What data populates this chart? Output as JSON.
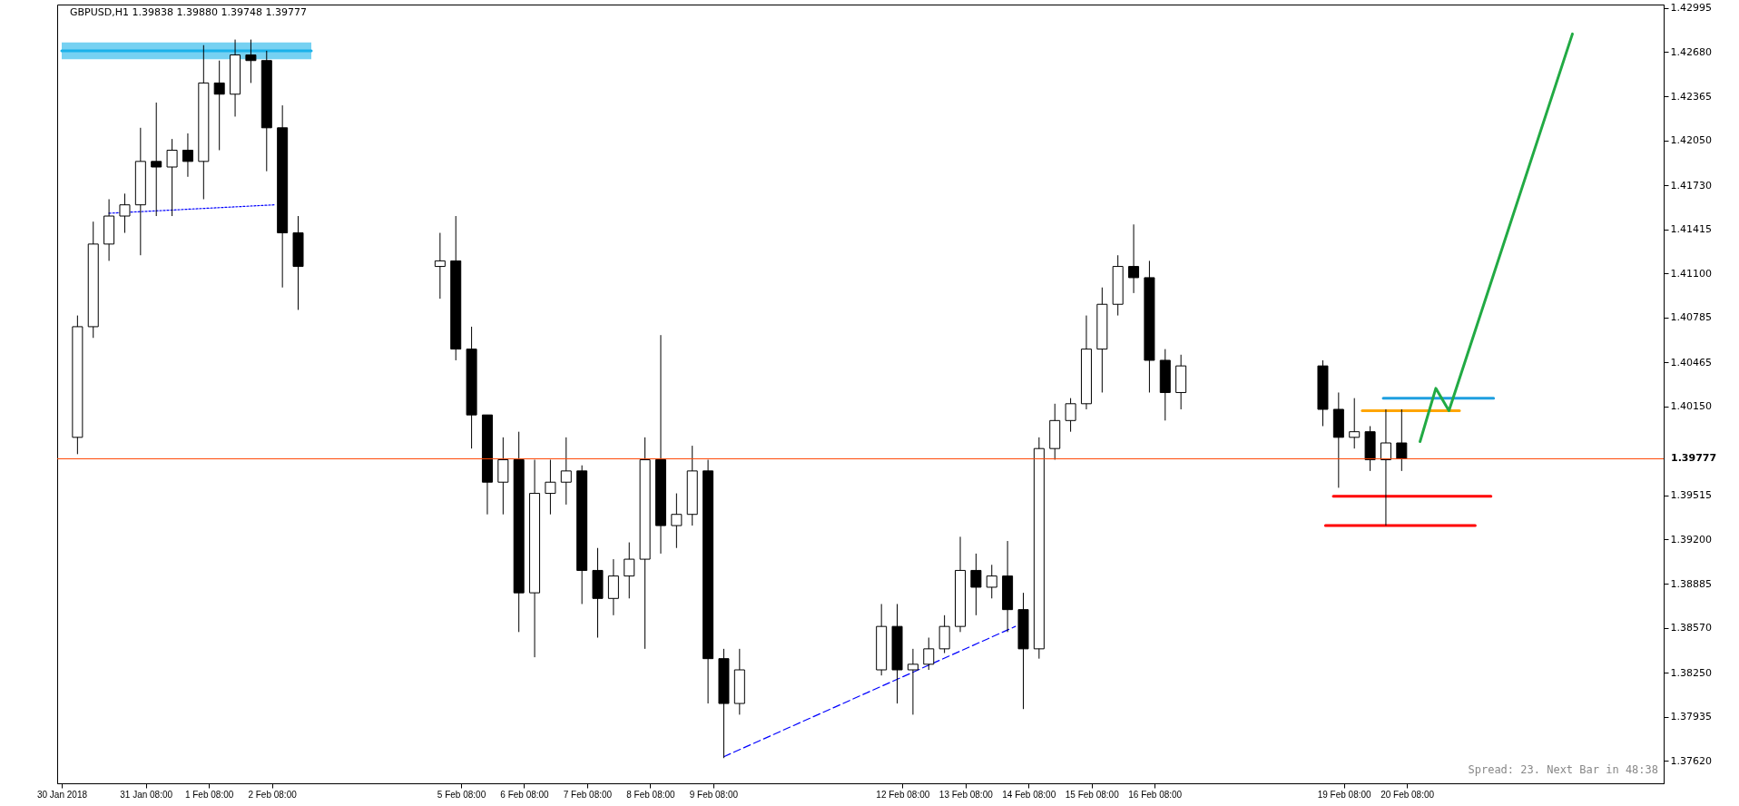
{
  "chart_data": {
    "type": "candlestick",
    "title": "GBPUSD,H1 1.39838 1.39880 1.39748 1.39777",
    "x": [
      "2018-01-30T06:00",
      "2018-01-30T12:00",
      "2018-01-30T18:00",
      "2018-01-31T00:00",
      "2018-01-31T06:00",
      "2018-01-31T12:00",
      "2018-01-31T18:00",
      "2018-02-01T00:00",
      "2018-02-01T06:00",
      "2018-02-01T12:00",
      "2018-02-01T18:00",
      "2018-02-02T00:00",
      "2018-02-02T06:00",
      "2018-02-02T12:00",
      "2018-02-02T18:00",
      "2018-02-05T00:00",
      "2018-02-05T06:00",
      "2018-02-05T12:00",
      "2018-02-05T18:00",
      "2018-02-06T00:00",
      "2018-02-06T06:00",
      "2018-02-06T12:00",
      "2018-02-06T18:00",
      "2018-02-07T00:00",
      "2018-02-07T06:00",
      "2018-02-07T12:00",
      "2018-02-07T18:00",
      "2018-02-08T00:00",
      "2018-02-08T06:00",
      "2018-02-08T12:00",
      "2018-02-08T18:00",
      "2018-02-09T00:00",
      "2018-02-09T06:00",
      "2018-02-09T12:00",
      "2018-02-09T18:00",
      "2018-02-12T00:00",
      "2018-02-12T06:00",
      "2018-02-12T12:00",
      "2018-02-12T18:00",
      "2018-02-13T00:00",
      "2018-02-13T06:00",
      "2018-02-13T12:00",
      "2018-02-13T18:00",
      "2018-02-14T00:00",
      "2018-02-14T06:00",
      "2018-02-14T12:00",
      "2018-02-14T18:00",
      "2018-02-15T00:00",
      "2018-02-15T06:00",
      "2018-02-15T12:00",
      "2018-02-15T18:00",
      "2018-02-16T00:00",
      "2018-02-16T06:00",
      "2018-02-16T12:00",
      "2018-02-16T18:00",
      "2018-02-19T00:00",
      "2018-02-19T06:00",
      "2018-02-19T12:00",
      "2018-02-19T18:00",
      "2018-02-20T00:00",
      "2018-02-20T06:00"
    ],
    "ohlc": [
      [
        1.3993,
        1.408,
        1.3981,
        1.4072
      ],
      [
        1.4072,
        1.4147,
        1.4064,
        1.4131
      ],
      [
        1.4131,
        1.4163,
        1.4119,
        1.4151
      ],
      [
        1.4151,
        1.4167,
        1.4139,
        1.4159
      ],
      [
        1.4159,
        1.4214,
        1.4123,
        1.419
      ],
      [
        1.419,
        1.4232,
        1.4151,
        1.4186
      ],
      [
        1.4186,
        1.4206,
        1.4151,
        1.4198
      ],
      [
        1.4198,
        1.421,
        1.4179,
        1.419
      ],
      [
        1.419,
        1.4273,
        1.4163,
        1.4246
      ],
      [
        1.4246,
        1.4262,
        1.4198,
        1.4238
      ],
      [
        1.4238,
        1.4277,
        1.4222,
        1.4266
      ],
      [
        1.4266,
        1.4277,
        1.4246,
        1.4262
      ],
      [
        1.4262,
        1.4269,
        1.4183,
        1.4214
      ],
      [
        1.4214,
        1.423,
        1.41,
        1.4139
      ],
      [
        1.4139,
        1.4151,
        1.4084,
        1.4115
      ],
      [
        1.4115,
        1.4139,
        1.4092,
        1.4119
      ],
      [
        1.4119,
        1.4151,
        1.4048,
        1.4056
      ],
      [
        1.4056,
        1.4072,
        1.3985,
        1.4009
      ],
      [
        1.4009,
        1.4009,
        1.3938,
        1.3961
      ],
      [
        1.3961,
        1.3993,
        1.3938,
        1.3977
      ],
      [
        1.3977,
        1.3997,
        1.3854,
        1.3882
      ],
      [
        1.3882,
        1.3977,
        1.3836,
        1.3953
      ],
      [
        1.3953,
        1.3977,
        1.3938,
        1.3961
      ],
      [
        1.3961,
        1.3993,
        1.3945,
        1.3969
      ],
      [
        1.3969,
        1.3973,
        1.3874,
        1.3898
      ],
      [
        1.3898,
        1.3914,
        1.385,
        1.3878
      ],
      [
        1.3878,
        1.3906,
        1.3866,
        1.3894
      ],
      [
        1.3894,
        1.3918,
        1.3878,
        1.3906
      ],
      [
        1.3906,
        1.3993,
        1.3842,
        1.3977
      ],
      [
        1.3977,
        1.4066,
        1.391,
        1.393
      ],
      [
        1.393,
        1.3953,
        1.3914,
        1.3938
      ],
      [
        1.3938,
        1.3987,
        1.393,
        1.3969
      ],
      [
        1.3969,
        1.3977,
        1.3803,
        1.3835
      ],
      [
        1.3835,
        1.3842,
        1.3764,
        1.3803
      ],
      [
        1.3803,
        1.3842,
        1.3795,
        1.3827
      ],
      [
        1.3827,
        1.3874,
        1.3823,
        1.3858
      ],
      [
        1.3858,
        1.3874,
        1.3803,
        1.3827
      ],
      [
        1.3827,
        1.3842,
        1.3795,
        1.3831
      ],
      [
        1.3831,
        1.385,
        1.3827,
        1.3842
      ],
      [
        1.3842,
        1.3866,
        1.3839,
        1.3858
      ],
      [
        1.3858,
        1.3922,
        1.3854,
        1.3898
      ],
      [
        1.3898,
        1.391,
        1.3866,
        1.3886
      ],
      [
        1.3886,
        1.3902,
        1.3878,
        1.3894
      ],
      [
        1.3894,
        1.3919,
        1.3854,
        1.387
      ],
      [
        1.387,
        1.3882,
        1.3799,
        1.3842
      ],
      [
        1.3842,
        1.3993,
        1.3835,
        1.3985
      ],
      [
        1.3985,
        1.4017,
        1.3977,
        1.4005
      ],
      [
        1.4005,
        1.4021,
        1.3997,
        1.4017
      ],
      [
        1.4017,
        1.408,
        1.4013,
        1.4056
      ],
      [
        1.4056,
        1.41,
        1.4025,
        1.4088
      ],
      [
        1.4088,
        1.4123,
        1.408,
        1.4115
      ],
      [
        1.4115,
        1.4145,
        1.4096,
        1.4107
      ],
      [
        1.4107,
        1.4119,
        1.4025,
        1.4048
      ],
      [
        1.4048,
        1.4056,
        1.4005,
        1.4025
      ],
      [
        1.4025,
        1.4052,
        1.4013,
        1.4044
      ],
      [
        1.4044,
        1.4048,
        1.4001,
        1.4013
      ],
      [
        1.4013,
        1.4025,
        1.3957,
        1.3993
      ],
      [
        1.3993,
        1.4021,
        1.3985,
        1.3997
      ],
      [
        1.3997,
        1.4001,
        1.3969,
        1.3977
      ],
      [
        1.3977,
        1.4013,
        1.393,
        1.3989
      ],
      [
        1.3989,
        1.4013,
        1.3969,
        1.39777
      ]
    ],
    "series": [
      {
        "type": "line",
        "color": "#1ab2ea",
        "x": [
          "2018-01-30T00:00",
          "2018-02-02T23:00"
        ],
        "values": [
          1.4269,
          1.4269
        ],
        "lower": [
          1.4263,
          1.4263
        ],
        "upper": [
          1.4275,
          1.4275
        ]
      },
      {
        "type": "line",
        "color": "#0000ff",
        "line_style": "dotted",
        "x": [
          "2018-01-30T18:00",
          "2018-02-02T09:00"
        ],
        "values": [
          1.4153,
          1.4159
        ]
      },
      {
        "type": "line",
        "color": "#0000ff",
        "line_style": "dashed",
        "x": [
          "2018-02-09T12:00",
          "2018-02-14T03:00"
        ],
        "values": [
          1.3765,
          1.3858
        ]
      },
      {
        "type": "line",
        "color": "#1e9fe0",
        "line_style": "solid",
        "x": [
          "2018-02-19T23:00",
          "2018-02-21T17:00"
        ],
        "values": [
          1.4021,
          1.4021
        ]
      },
      {
        "type": "line",
        "color": "#ffa500",
        "line_style": "solid",
        "x": [
          "2018-02-19T15:00",
          "2018-02-21T04:00"
        ],
        "values": [
          1.4012,
          1.4012
        ]
      },
      {
        "type": "line",
        "color": "#ff0000",
        "line_style": "solid",
        "x": [
          "2018-02-19T04:00",
          "2018-02-21T16:00"
        ],
        "values": [
          1.3951,
          1.3951
        ]
      },
      {
        "type": "line",
        "color": "#ff0000",
        "line_style": "solid",
        "x": [
          "2018-02-19T01:00",
          "2018-02-21T10:00"
        ],
        "values": [
          1.393,
          1.393
        ]
      },
      {
        "type": "line",
        "color": "#22aa44",
        "line_style": "solid",
        "x": [
          "2018-02-20T13:00",
          "2018-02-20T19:00",
          "2018-02-21T00:00",
          "2018-02-22T23:00"
        ],
        "values": [
          1.399,
          1.4028,
          1.4012,
          1.4281
        ]
      }
    ],
    "ref_lines": [
      {
        "axis": "y",
        "value": 1.39777,
        "label": "1.39777",
        "color": "#ff4500"
      }
    ],
    "xlim": [
      "2018-01-30T00:00",
      "2018-02-24T08:00"
    ],
    "xticks": [
      {
        "value": "2018-01-30T00:00",
        "label": "30 Jan 2018"
      },
      {
        "value": "2018-01-31T08:00",
        "label": "31 Jan 08:00"
      },
      {
        "value": "2018-02-01T08:00",
        "label": "1 Feb 08:00"
      },
      {
        "value": "2018-02-02T08:00",
        "label": "2 Feb 08:00"
      },
      {
        "value": "2018-02-05T08:00",
        "label": "5 Feb 08:00"
      },
      {
        "value": "2018-02-06T08:00",
        "label": "6 Feb 08:00"
      },
      {
        "value": "2018-02-07T08:00",
        "label": "7 Feb 08:00"
      },
      {
        "value": "2018-02-08T08:00",
        "label": "8 Feb 08:00"
      },
      {
        "value": "2018-02-09T08:00",
        "label": "9 Feb 08:00"
      },
      {
        "value": "2018-02-12T08:00",
        "label": "12 Feb 08:00"
      },
      {
        "value": "2018-02-13T08:00",
        "label": "13 Feb 08:00"
      },
      {
        "value": "2018-02-14T08:00",
        "label": "14 Feb 08:00"
      },
      {
        "value": "2018-02-15T08:00",
        "label": "15 Feb 08:00"
      },
      {
        "value": "2018-02-16T08:00",
        "label": "16 Feb 08:00"
      },
      {
        "value": "2018-02-19T08:00",
        "label": "19 Feb 08:00"
      },
      {
        "value": "2018-02-20T08:00",
        "label": "20 Feb 08:00"
      }
    ],
    "ylim": [
      1.3746,
      1.4302
    ],
    "yticks": [
      {
        "value": 1.42995,
        "label": "1.42995"
      },
      {
        "value": 1.4268,
        "label": "1.42680"
      },
      {
        "value": 1.42365,
        "label": "1.42365"
      },
      {
        "value": 1.4205,
        "label": "1.42050"
      },
      {
        "value": 1.4173,
        "label": "1.41730"
      },
      {
        "value": 1.41415,
        "label": "1.41415"
      },
      {
        "value": 1.411,
        "label": "1.41100"
      },
      {
        "value": 1.40785,
        "label": "1.40785"
      },
      {
        "value": 1.40465,
        "label": "1.40465"
      },
      {
        "value": 1.4015,
        "label": "1.40150"
      },
      {
        "value": 1.39515,
        "label": "1.39515"
      },
      {
        "value": 1.392,
        "label": "1.39200"
      },
      {
        "value": 1.38885,
        "label": "1.38885"
      },
      {
        "value": 1.3857,
        "label": "1.38570"
      },
      {
        "value": 1.3825,
        "label": "1.38250"
      },
      {
        "value": 1.37935,
        "label": "1.37935"
      },
      {
        "value": 1.3762,
        "label": "1.37620"
      }
    ],
    "annotations": [
      "Spread: 23. Next Bar in 48:38"
    ],
    "grid": false
  }
}
